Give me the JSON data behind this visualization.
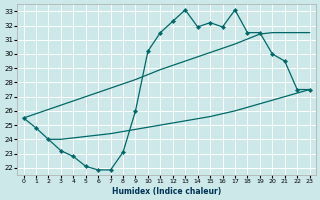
{
  "xlabel": "Humidex (Indice chaleur)",
  "bg_color": "#cce8e8",
  "grid_color": "#ffffff",
  "line_color": "#006868",
  "xlim": [
    -0.5,
    23.5
  ],
  "ylim": [
    21.5,
    33.5
  ],
  "xticks": [
    0,
    1,
    2,
    3,
    4,
    5,
    6,
    7,
    8,
    9,
    10,
    11,
    12,
    13,
    14,
    15,
    16,
    17,
    18,
    19,
    20,
    21,
    22,
    23
  ],
  "yticks": [
    22,
    23,
    24,
    25,
    26,
    27,
    28,
    29,
    30,
    31,
    32,
    33
  ],
  "line1_x": [
    0,
    1,
    2,
    3,
    4,
    5,
    6,
    7,
    8,
    9,
    10,
    11,
    12,
    13,
    14,
    15,
    16,
    17,
    18,
    19,
    20,
    21,
    22,
    23
  ],
  "line1_y": [
    25.5,
    24.8,
    24.0,
    23.2,
    22.8,
    22.1,
    21.85,
    21.85,
    23.1,
    26.0,
    30.2,
    31.5,
    32.3,
    33.1,
    31.9,
    32.2,
    31.9,
    33.1,
    31.5,
    31.5,
    30.0,
    29.5,
    27.5,
    27.5
  ],
  "line2_x": [
    0,
    1,
    2,
    3,
    5,
    7,
    9,
    11,
    13,
    15,
    17,
    19,
    20,
    23
  ],
  "line2_y": [
    25.5,
    25.8,
    26.1,
    26.4,
    27.0,
    27.6,
    28.2,
    28.9,
    29.5,
    30.1,
    30.7,
    31.4,
    31.5,
    31.5
  ],
  "line3_x": [
    2,
    3,
    5,
    7,
    9,
    11,
    13,
    15,
    17,
    19,
    21,
    23
  ],
  "line3_y": [
    24.0,
    24.0,
    24.2,
    24.4,
    24.7,
    25.0,
    25.3,
    25.6,
    26.0,
    26.5,
    27.0,
    27.5
  ]
}
